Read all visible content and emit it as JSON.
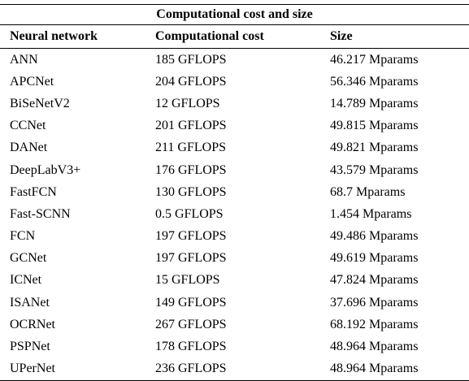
{
  "table": {
    "caption": "Computational cost and size",
    "headers": [
      "Neural network",
      "Computational cost",
      "Size"
    ],
    "rows": [
      [
        "ANN",
        "185 GFLOPS",
        "46.217 Mparams"
      ],
      [
        "APCNet",
        "204 GFLOPS",
        "56.346 Mparams"
      ],
      [
        "BiSeNetV2",
        "12 GFLOPS",
        "14.789 Mparams"
      ],
      [
        "CCNet",
        "201 GFLOPS",
        "49.815 Mparams"
      ],
      [
        "DANet",
        "211 GFLOPS",
        "49.821 Mparams"
      ],
      [
        "DeepLabV3+",
        "176 GFLOPS",
        "43.579 Mparams"
      ],
      [
        "FastFCN",
        "130 GFLOPS",
        "68.7 Mparams"
      ],
      [
        "Fast-SCNN",
        "0.5 GFLOPS",
        "1.454 Mparams"
      ],
      [
        "FCN",
        "197 GFLOPS",
        "49.486 Mparams"
      ],
      [
        "GCNet",
        "197 GFLOPS",
        "49.619 Mparams"
      ],
      [
        "ICNet",
        "15 GFLOPS",
        "47.824 Mparams"
      ],
      [
        "ISANet",
        "149 GFLOPS",
        "37.696 Mparams"
      ],
      [
        "OCRNet",
        "267 GFLOPS",
        "68.192 Mparams"
      ],
      [
        "PSPNet",
        "178 GFLOPS",
        "48.964 Mparams"
      ],
      [
        "UPerNet",
        "236 GFLOPS",
        "48.964 Mparams"
      ]
    ]
  }
}
